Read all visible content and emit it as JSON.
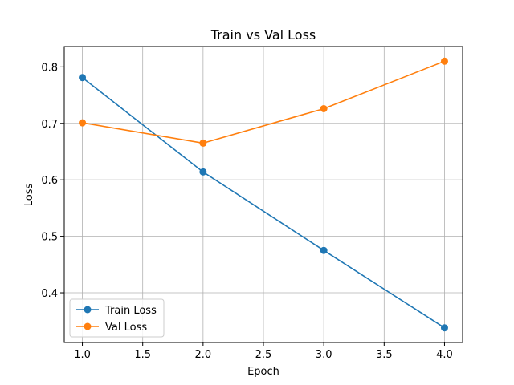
{
  "chart_data": {
    "type": "line",
    "title": "Train vs Val Loss",
    "xlabel": "Epoch",
    "ylabel": "Loss",
    "xlim": [
      0.85,
      4.15
    ],
    "ylim": [
      0.312,
      0.836
    ],
    "xticks": [
      "1.0",
      "1.5",
      "2.0",
      "2.5",
      "3.0",
      "3.5",
      "4.0"
    ],
    "yticks": [
      "0.4",
      "0.5",
      "0.6",
      "0.7",
      "0.8"
    ],
    "grid": true,
    "legend_position": "lower-left",
    "x": [
      1,
      2,
      3,
      4
    ],
    "series": [
      {
        "name": "Train Loss",
        "color": "#1f77b4",
        "marker": "circle",
        "values": [
          0.781,
          0.614,
          0.475,
          0.338
        ]
      },
      {
        "name": "Val Loss",
        "color": "#ff7f0e",
        "marker": "circle",
        "values": [
          0.701,
          0.665,
          0.726,
          0.81
        ]
      }
    ]
  }
}
